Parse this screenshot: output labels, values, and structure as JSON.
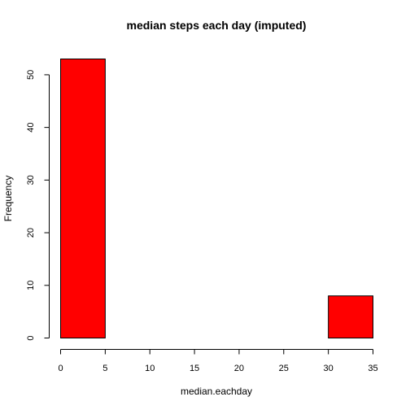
{
  "chart_data": {
    "type": "bar",
    "subtype": "histogram",
    "title": "median steps each day (imputed)",
    "xlabel": "median.eachday",
    "ylabel": "Frequency",
    "bins": [
      {
        "start": 0,
        "end": 5,
        "count": 53
      },
      {
        "start": 5,
        "end": 10,
        "count": 0
      },
      {
        "start": 10,
        "end": 15,
        "count": 0
      },
      {
        "start": 15,
        "end": 20,
        "count": 0
      },
      {
        "start": 20,
        "end": 25,
        "count": 0
      },
      {
        "start": 25,
        "end": 30,
        "count": 0
      },
      {
        "start": 30,
        "end": 35,
        "count": 8
      }
    ],
    "xlim": [
      0,
      35
    ],
    "ylim": [
      0,
      53
    ],
    "x_ticks": [
      0,
      5,
      10,
      15,
      20,
      25,
      30,
      35
    ],
    "y_ticks": [
      0,
      10,
      20,
      30,
      40,
      50
    ],
    "bar_color": "#ff0000",
    "grid": false,
    "legend": "none"
  }
}
